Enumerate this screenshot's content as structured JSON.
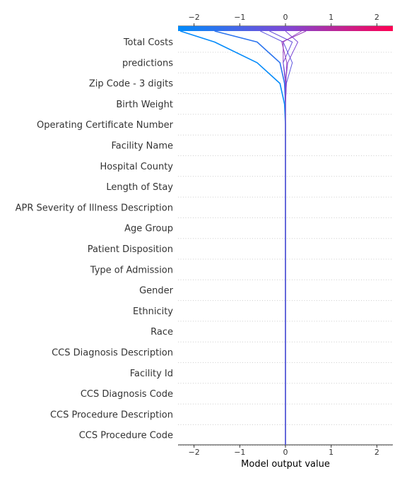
{
  "chart_data": {
    "type": "line",
    "subtype": "shap-decision-plot",
    "title": "",
    "xlabel": "Model output value",
    "ylabel": "",
    "xlim": [
      -2.35,
      2.35
    ],
    "x_ticks": [
      -2,
      -1,
      0,
      1,
      2
    ],
    "tick_labels": [
      "−2",
      "−1",
      "0",
      "1",
      "2"
    ],
    "base_value": 0,
    "grid": "dotted horizontal",
    "colormap": {
      "low": "#008bfb",
      "mid": "#7d48d6",
      "high": "#ff0052"
    },
    "features": [
      "Total Costs",
      "predictions",
      "Zip Code - 3 digits",
      "Birth Weight",
      "Operating Certificate Number",
      "Facility Name",
      "Hospital County",
      "Length of Stay",
      "APR Severity of Illness Description",
      "Age Group",
      "Patient Disposition",
      "Type of Admission",
      "Gender",
      "Ethnicity",
      "Race",
      "CCS Diagnosis Description",
      "Facility Id",
      "CCS Diagnosis Code",
      "CCS Procedure Description",
      "CCS Procedure Code"
    ],
    "series": [
      {
        "values": [
          -1.55,
          -0.62,
          -0.12,
          -0.02,
          0,
          0,
          0,
          0,
          0,
          0,
          0,
          0,
          0,
          0,
          0,
          0,
          0,
          0,
          0,
          0,
          0
        ]
      },
      {
        "values": [
          -2.3,
          -1.55,
          -0.62,
          -0.12,
          -0.02,
          0,
          0,
          0,
          0,
          0,
          0,
          0,
          0,
          0,
          0,
          0,
          0,
          0,
          0,
          0,
          0
        ]
      },
      {
        "values": [
          -0.55,
          -0.05,
          0.15,
          0.02,
          0,
          0,
          0,
          0,
          0,
          0,
          0,
          0,
          0,
          0,
          0,
          0,
          0,
          0,
          0,
          0,
          0
        ]
      },
      {
        "values": [
          0.35,
          -0.05,
          -0.05,
          0,
          0,
          0,
          0,
          0,
          0,
          0,
          0,
          0,
          0,
          0,
          0,
          0,
          0,
          0,
          0,
          0,
          0
        ]
      },
      {
        "values": [
          0.0,
          0.27,
          0.05,
          0.0,
          0,
          0,
          0,
          0,
          0,
          0,
          0,
          0,
          0,
          0,
          0,
          0,
          0,
          0,
          0,
          0,
          0
        ]
      },
      {
        "values": [
          -0.35,
          0.15,
          -0.05,
          0.02,
          0,
          0,
          0,
          0,
          0,
          0,
          0,
          0,
          0,
          0,
          0,
          0,
          0,
          0,
          0,
          0,
          0
        ]
      },
      {
        "values": [
          0.45,
          -0.08,
          0.03,
          0.01,
          0,
          0,
          0,
          0,
          0,
          0,
          0,
          0,
          0,
          0,
          0,
          0,
          0,
          0,
          0,
          0,
          0
        ]
      }
    ]
  }
}
